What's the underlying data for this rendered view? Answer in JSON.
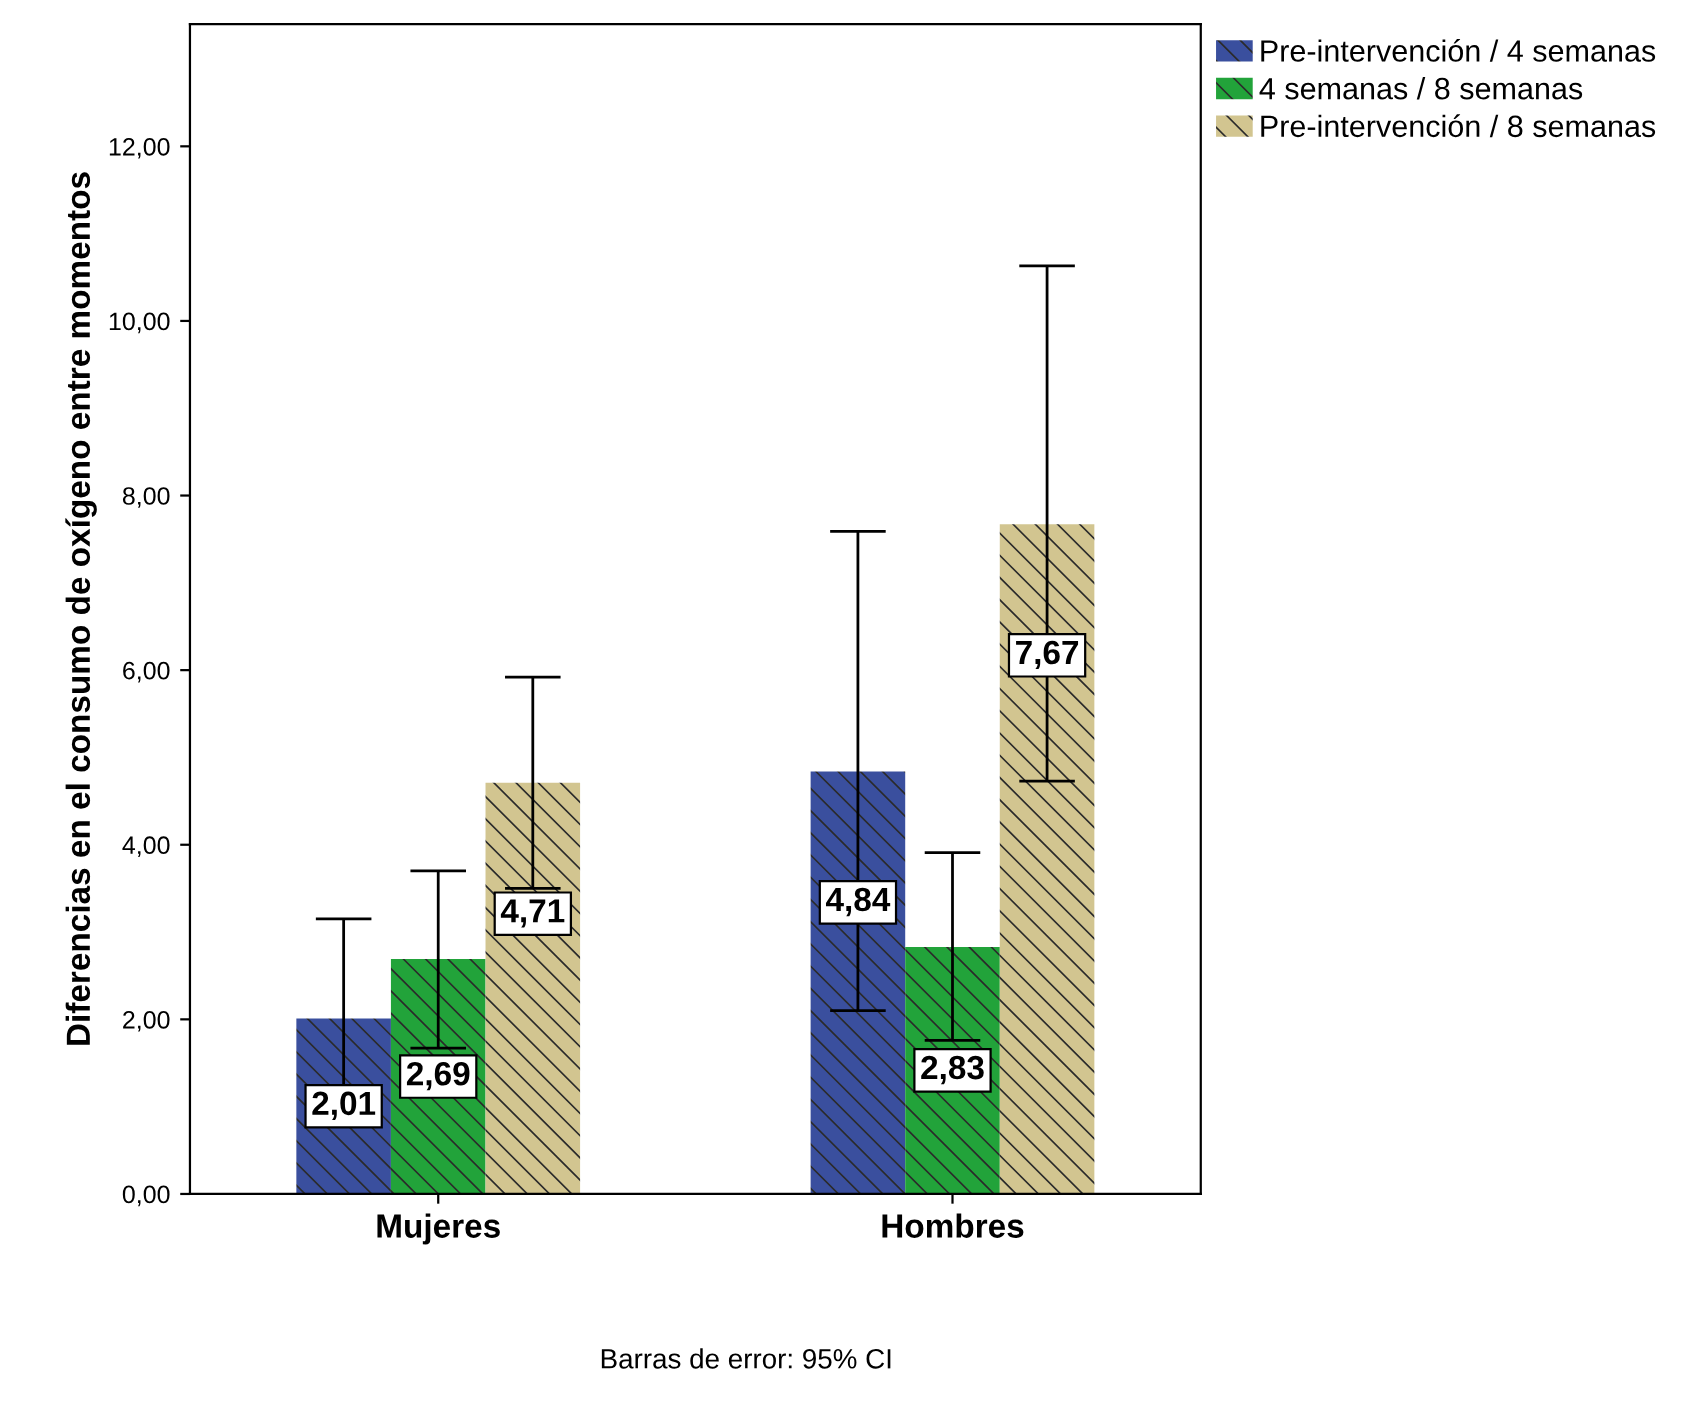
{
  "chart_data": {
    "type": "bar",
    "ylabel": "Diferencias en el consumo de oxígeno entre momentos",
    "categories": [
      "Mujeres",
      "Hombres"
    ],
    "series": [
      {
        "name": "Pre-intervención / 4 semanas",
        "color": "#3a4f9e",
        "values": [
          2.01,
          4.84
        ],
        "errors": [
          [
            0.85,
            3.15
          ],
          [
            2.1,
            7.59
          ]
        ],
        "value_labels": [
          "2,01",
          "4,84"
        ]
      },
      {
        "name": "4 semanas / 8 semanas",
        "color": "#22a33a",
        "values": [
          2.69,
          2.83
        ],
        "errors": [
          [
            1.67,
            3.7
          ],
          [
            1.76,
            3.91
          ]
        ],
        "value_labels": [
          "2,69",
          "2,83"
        ]
      },
      {
        "name": "Pre-intervención / 8 semanas",
        "color": "#d2c590",
        "values": [
          4.71,
          7.67
        ],
        "errors": [
          [
            3.5,
            5.92
          ],
          [
            4.73,
            10.63
          ]
        ],
        "value_labels": [
          "4,71",
          "7,67"
        ]
      }
    ],
    "ylim": [
      0,
      13.4
    ],
    "yticks": [
      {
        "value": 0,
        "label": "0,00"
      },
      {
        "value": 2,
        "label": "2,00"
      },
      {
        "value": 4,
        "label": "4,00"
      },
      {
        "value": 6,
        "label": "6,00"
      },
      {
        "value": 8,
        "label": "8,00"
      },
      {
        "value": 10,
        "label": "10,00"
      },
      {
        "value": 12,
        "label": "12,00"
      }
    ],
    "legend": "top right",
    "grid": false,
    "annotations": [
      "Barras de error: 95% CI"
    ]
  }
}
